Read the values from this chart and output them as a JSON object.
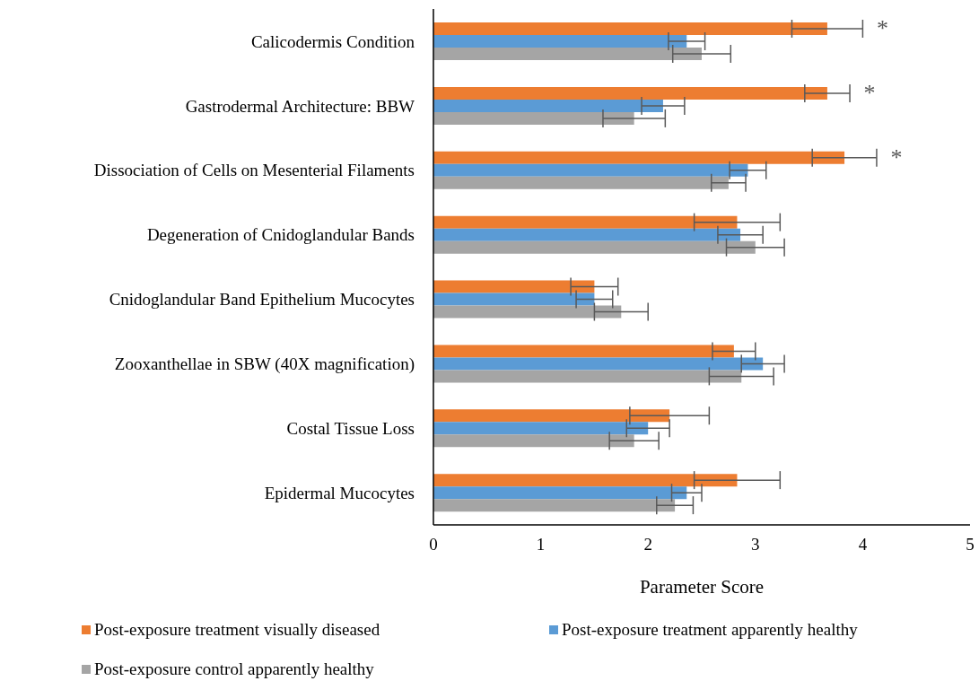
{
  "chart_data": {
    "type": "bar",
    "orientation": "horizontal",
    "xlabel": "Parameter Score",
    "categories": [
      "Calicodermis Condition",
      "Gastrodermal Architecture: BBW",
      "Dissociation of Cells on Mesenterial Filaments",
      "Degeneration of Cnidoglandular Bands",
      "Cnidoglandular Band Epithelium Mucocytes",
      "Zooxanthellae in SBW (40X magnification)",
      "Costal Tissue Loss",
      "Epidermal Mucocytes"
    ],
    "series": [
      {
        "name": "Post-exposure treatment visually diseased",
        "color": "#ed7d31",
        "values": [
          3.67,
          3.67,
          3.83,
          2.83,
          1.5,
          2.8,
          2.2,
          2.83
        ],
        "errors": [
          0.33,
          0.21,
          0.3,
          0.4,
          0.22,
          0.2,
          0.37,
          0.4
        ]
      },
      {
        "name": "Post-exposure treatment apparently healthy",
        "color": "#5b9bd5",
        "values": [
          2.36,
          2.14,
          2.93,
          2.86,
          1.5,
          3.07,
          2.0,
          2.36
        ],
        "errors": [
          0.17,
          0.2,
          0.17,
          0.21,
          0.17,
          0.2,
          0.2,
          0.14
        ]
      },
      {
        "name": "Post-exposure control apparently healthy",
        "color": "#a5a5a5",
        "values": [
          2.5,
          1.87,
          2.75,
          3.0,
          1.75,
          2.87,
          1.87,
          2.25
        ],
        "errors": [
          0.27,
          0.29,
          0.16,
          0.27,
          0.25,
          0.3,
          0.23,
          0.17
        ]
      }
    ],
    "xlim": [
      0,
      5
    ],
    "xticks": [
      0,
      1,
      2,
      3,
      4,
      5
    ],
    "legend": "bottom",
    "annotations": [
      "*",
      "*",
      "*"
    ]
  }
}
